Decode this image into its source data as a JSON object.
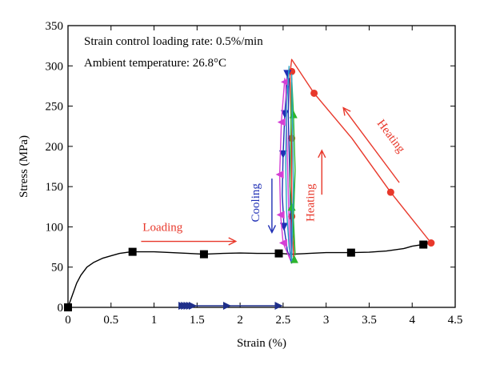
{
  "chart_data": {
    "type": "line",
    "title": "",
    "xlabel": "Strain (%)",
    "ylabel": "Stress (MPa)",
    "xlim": [
      0,
      4.5
    ],
    "ylim": [
      0,
      350
    ],
    "xticks": [
      0,
      0.5,
      1,
      1.5,
      2,
      2.5,
      3,
      3.5,
      4,
      4.5
    ],
    "xtick_labels": [
      "0",
      "0.5",
      "1",
      "1.5",
      "2",
      "2.5",
      "3",
      "3.5",
      "4",
      "4.5"
    ],
    "yticks": [
      0,
      50,
      100,
      150,
      200,
      250,
      300,
      350
    ],
    "ytick_labels": [
      "0",
      "50",
      "100",
      "150",
      "200",
      "250",
      "300",
      "350"
    ],
    "grid": false,
    "notes": [
      "Strain control loading rate: 0.5%/min",
      "Ambient temperature: 26.8°C"
    ],
    "annotations": [
      {
        "text": "Loading",
        "color": "#e8382b",
        "x": 1.1,
        "y": 95,
        "rotate": 0
      },
      {
        "text": "Cooling",
        "color": "#1f2fb5",
        "x": 2.22,
        "y": 130,
        "rotate": -90
      },
      {
        "text": "Heating",
        "color": "#e8382b",
        "x": 2.86,
        "y": 130,
        "rotate": -90
      },
      {
        "text": "Heating",
        "color": "#e8382b",
        "x": 3.72,
        "y": 210,
        "rotate": 53
      }
    ],
    "arrows": [
      {
        "color": "#e8382b",
        "from": [
          0.85,
          82
        ],
        "to": [
          1.95,
          82
        ]
      },
      {
        "color": "#1f2fb5",
        "from": [
          2.37,
          160
        ],
        "to": [
          2.37,
          93
        ]
      },
      {
        "color": "#e8382b",
        "from": [
          2.95,
          140
        ],
        "to": [
          2.95,
          195
        ]
      },
      {
        "color": "#e8382b",
        "from": [
          3.85,
          155
        ],
        "to": [
          3.2,
          248
        ]
      }
    ],
    "series": [
      {
        "color": "#000000",
        "marker": "square",
        "points": [
          [
            0,
            0
          ],
          [
            0.05,
            15
          ],
          [
            0.1,
            30
          ],
          [
            0.15,
            40
          ],
          [
            0.22,
            50
          ],
          [
            0.3,
            56
          ],
          [
            0.4,
            61
          ],
          [
            0.5,
            64
          ],
          [
            0.6,
            67
          ],
          [
            0.7,
            68.5
          ],
          [
            0.75,
            69
          ],
          [
            0.85,
            69
          ],
          [
            1.0,
            69
          ],
          [
            1.2,
            68
          ],
          [
            1.4,
            67
          ],
          [
            1.58,
            66
          ],
          [
            1.8,
            67
          ],
          [
            2.0,
            67.5
          ],
          [
            2.2,
            67
          ],
          [
            2.45,
            67
          ],
          [
            2.6,
            66
          ],
          [
            2.8,
            67
          ],
          [
            3.0,
            68
          ],
          [
            3.29,
            68
          ],
          [
            3.5,
            68.5
          ],
          [
            3.7,
            70
          ],
          [
            3.9,
            73
          ],
          [
            4.0,
            76
          ],
          [
            4.12,
            78
          ],
          [
            4.2,
            82
          ],
          [
            4.24,
            82
          ],
          [
            4.22,
            80
          ],
          [
            4.15,
            78
          ]
        ],
        "markers": [
          [
            0,
            0
          ],
          [
            0.75,
            69
          ],
          [
            1.58,
            66
          ],
          [
            2.45,
            67
          ],
          [
            3.29,
            68
          ],
          [
            4.13,
            78
          ]
        ]
      },
      {
        "color": "#e8382b",
        "marker": "circle",
        "points": [
          [
            4.22,
            80
          ],
          [
            3.75,
            143
          ],
          [
            3.3,
            210
          ],
          [
            2.86,
            266
          ],
          [
            2.6,
            308
          ],
          [
            2.58,
            290
          ],
          [
            2.6,
            200
          ],
          [
            2.6,
            110
          ],
          [
            2.62,
            70
          ],
          [
            2.62,
            62
          ]
        ],
        "markers": [
          [
            4.22,
            80
          ],
          [
            3.75,
            143
          ],
          [
            2.86,
            266
          ],
          [
            2.6,
            293
          ],
          [
            2.6,
            210
          ],
          [
            2.6,
            113
          ]
        ]
      },
      {
        "color": "#1f2fb5",
        "marker": "triangle-down",
        "points": [
          [
            2.55,
            290
          ],
          [
            2.52,
            240
          ],
          [
            2.5,
            190
          ],
          [
            2.49,
            140
          ],
          [
            2.51,
            100
          ],
          [
            2.55,
            70
          ],
          [
            2.6,
            55
          ],
          [
            2.58,
            150
          ],
          [
            2.56,
            240
          ],
          [
            2.57,
            285
          ]
        ],
        "markers": [
          [
            2.55,
            290
          ],
          [
            2.52,
            240
          ],
          [
            2.5,
            190
          ],
          [
            2.51,
            100
          ]
        ]
      },
      {
        "color": "#d43fd4",
        "marker": "triangle-left",
        "points": [
          [
            2.52,
            285
          ],
          [
            2.48,
            230
          ],
          [
            2.46,
            165
          ],
          [
            2.47,
            115
          ],
          [
            2.5,
            80
          ],
          [
            2.58,
            60
          ],
          [
            2.55,
            180
          ],
          [
            2.53,
            280
          ]
        ],
        "markers": [
          [
            2.52,
            280
          ],
          [
            2.48,
            230
          ],
          [
            2.46,
            165
          ],
          [
            2.47,
            115
          ],
          [
            2.5,
            80
          ]
        ]
      },
      {
        "color": "#2db52d",
        "marker": "triangle-up",
        "points": [
          [
            2.6,
            285
          ],
          [
            2.62,
            240
          ],
          [
            2.64,
            170
          ],
          [
            2.62,
            110
          ],
          [
            2.64,
            65
          ],
          [
            2.58,
            150
          ],
          [
            2.6,
            280
          ]
        ],
        "markers": [
          [
            2.62,
            240
          ],
          [
            2.6,
            125
          ],
          [
            2.63,
            60
          ]
        ]
      },
      {
        "color": "#29a6c7",
        "marker": "none",
        "points": [
          [
            2.57,
            300
          ],
          [
            2.54,
            250
          ],
          [
            2.53,
            180
          ],
          [
            2.54,
            120
          ],
          [
            2.57,
            75
          ],
          [
            2.6,
            58
          ],
          [
            2.62,
            150
          ],
          [
            2.6,
            290
          ]
        ],
        "markers": []
      },
      {
        "color": "#1f2f8a",
        "marker": "triangle-right",
        "points": [
          [
            1.3,
            2
          ],
          [
            2.45,
            2
          ]
        ],
        "markers": [
          [
            1.33,
            2
          ],
          [
            1.36,
            2
          ],
          [
            1.39,
            2
          ],
          [
            1.42,
            2
          ],
          [
            1.45,
            2
          ],
          [
            1.85,
            2
          ],
          [
            2.45,
            2
          ]
        ]
      }
    ]
  }
}
